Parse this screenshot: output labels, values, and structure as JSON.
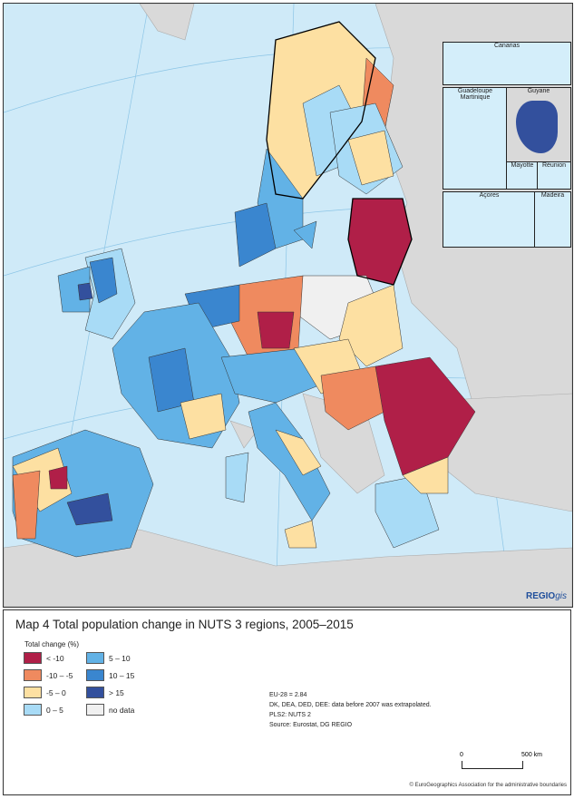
{
  "map": {
    "brand": "REGIO",
    "brand_suffix": "gis",
    "insets": [
      "Canarias",
      "Guadeloupe Martinique",
      "Guyane",
      "Mayotte",
      "Réunion",
      "Açores",
      "Madeira"
    ]
  },
  "title": "Map 4 Total population change in NUTS 3 regions, 2005–2015",
  "legend": {
    "title": "Total change (%)",
    "items": [
      {
        "label": "< -10",
        "color": "#b01f48"
      },
      {
        "label": "-10 – -5",
        "color": "#ef8a5f"
      },
      {
        "label": "-5 – 0",
        "color": "#fde0a2"
      },
      {
        "label": "0 – 5",
        "color": "#a8dbf6"
      },
      {
        "label": "5 – 10",
        "color": "#62b2e6"
      },
      {
        "label": "10 – 15",
        "color": "#3a86cf"
      },
      {
        "label": "> 15",
        "color": "#33509d"
      },
      {
        "label": "no data",
        "color": "#f0f0f0"
      }
    ]
  },
  "notes": [
    "EU-28 = 2.84",
    "DK, DEA, DED, DEE: data before 2007 was extrapolated.",
    "PLS2: NUTS 2",
    "Source: Eurostat, DG REGIO"
  ],
  "scale": {
    "start": "0",
    "end": "500 km"
  },
  "copyright": "© EuroGeographics Association for the administrative boundaries"
}
